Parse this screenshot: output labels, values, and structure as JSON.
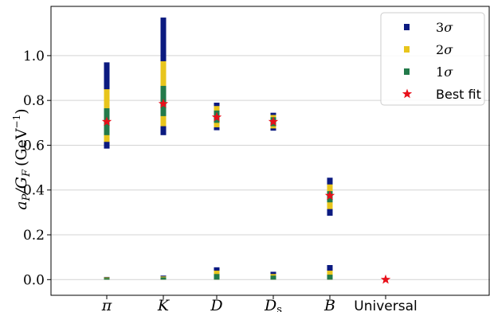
{
  "chart_data": {
    "type": "scatter",
    "title": "",
    "ylabel": "a_P/G_F (GeV⁻¹)",
    "ylabel_main": "a",
    "ylabel_sub": "P",
    "ylabel_mid": "/G",
    "ylabel_sub2": "F",
    "ylabel_unit": "(GeV",
    "ylabel_exp": "−1",
    "ylabel_close": ")",
    "ylim": [
      -0.07,
      1.22
    ],
    "yticks": [
      0.0,
      0.2,
      0.4,
      0.6,
      0.8,
      1.0
    ],
    "ytick_labels": [
      "0.0",
      "0.2",
      "0.4",
      "0.6",
      "0.8",
      "1.0"
    ],
    "grid": true,
    "legend_placement": "top-right",
    "categories": [
      "π",
      "K",
      "D",
      "D_s",
      "B",
      "Universal"
    ],
    "category_labels": [
      {
        "main": "π"
      },
      {
        "main": "K"
      },
      {
        "main": "D"
      },
      {
        "main": "D",
        "sub": "s"
      },
      {
        "main": "B"
      },
      {
        "main": "Universal"
      }
    ],
    "series": [
      {
        "name": "3σ",
        "color": "#0b1a80",
        "intervals": [
          [
            [
              0.585,
              0.97
            ],
            [
              0.0,
              0.012
            ]
          ],
          [
            [
              0.645,
              1.17
            ],
            [
              0.0,
              0.018
            ]
          ],
          [
            [
              0.667,
              0.79
            ],
            [
              0.0,
              0.055
            ]
          ],
          [
            [
              0.665,
              0.745
            ],
            [
              0.0,
              0.035
            ]
          ],
          [
            [
              0.285,
              0.455
            ],
            [
              0.0,
              0.065
            ]
          ],
          []
        ]
      },
      {
        "name": "2σ",
        "color": "#e8c51c",
        "intervals": [
          [
            [
              0.615,
              0.85
            ],
            [
              0.0,
              0.01
            ]
          ],
          [
            [
              0.685,
              0.975
            ],
            [
              0.0,
              0.014
            ]
          ],
          [
            [
              0.68,
              0.775
            ],
            [
              0.0,
              0.04
            ]
          ],
          [
            [
              0.675,
              0.735
            ],
            [
              0.0,
              0.025
            ]
          ],
          [
            [
              0.315,
              0.425
            ],
            [
              0.0,
              0.04
            ]
          ],
          []
        ]
      },
      {
        "name": "1σ",
        "color": "#237a4a",
        "intervals": [
          [
            [
              0.645,
              0.765
            ],
            [
              0.0,
              0.007
            ]
          ],
          [
            [
              0.73,
              0.865
            ],
            [
              0.0,
              0.01
            ]
          ],
          [
            [
              0.7,
              0.755
            ],
            [
              0.0,
              0.025
            ]
          ],
          [
            [
              0.685,
              0.725
            ],
            [
              0.0,
              0.018
            ]
          ],
          [
            [
              0.345,
              0.395
            ],
            [
              0.0,
              0.022
            ]
          ],
          []
        ]
      }
    ],
    "best_fit": {
      "name": "Best fit",
      "color": "#e8101a",
      "values": [
        0.705,
        0.785,
        0.725,
        0.705,
        0.375,
        0.0
      ]
    },
    "legend": {
      "entries": [
        {
          "prefix": "3",
          "suffix": "σ",
          "color": "#0b1a80",
          "kind": "square"
        },
        {
          "prefix": "2",
          "suffix": "σ",
          "color": "#e8c51c",
          "kind": "square"
        },
        {
          "prefix": "1",
          "suffix": "σ",
          "color": "#237a4a",
          "kind": "square"
        },
        {
          "label": "Best fit",
          "color": "#e8101a",
          "kind": "star"
        }
      ]
    }
  }
}
